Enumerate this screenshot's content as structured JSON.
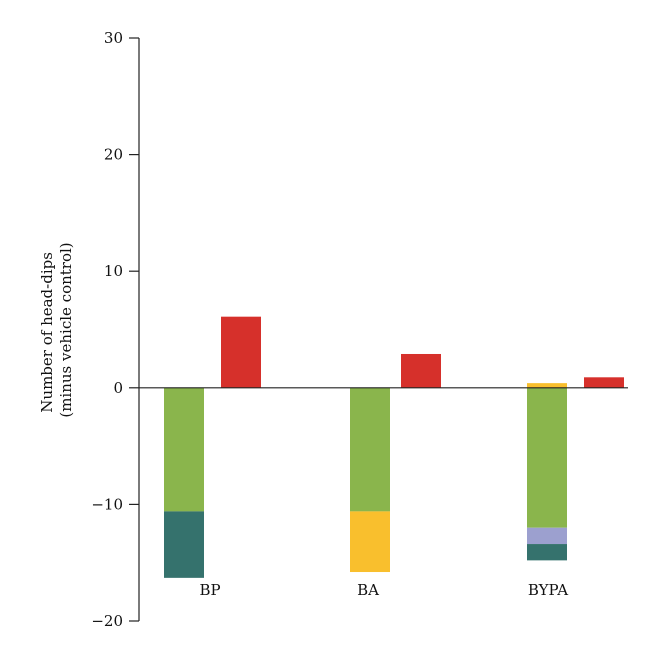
{
  "chart_data": {
    "type": "bar",
    "ylabel_lines": [
      "Number of head-dips",
      "(minus vehicle control)"
    ],
    "ylim": [
      -20,
      30
    ],
    "yticks": [
      30,
      20,
      10,
      0,
      -10,
      -20
    ],
    "categories": [
      "BP",
      "BA",
      "BYPA"
    ],
    "grid": false,
    "bars": [
      {
        "category": "BP",
        "position": "left",
        "segments": [
          {
            "from": 0,
            "to": -10.6,
            "color": "#8ab54c"
          },
          {
            "from": -10.6,
            "to": -16.3,
            "color": "#35726d"
          }
        ]
      },
      {
        "category": "BP",
        "position": "right",
        "segments": [
          {
            "from": 0,
            "to": 6.1,
            "color": "#d6302b"
          }
        ]
      },
      {
        "category": "BA",
        "position": "left",
        "segments": [
          {
            "from": 0,
            "to": -10.6,
            "color": "#8ab54c"
          },
          {
            "from": -10.6,
            "to": -15.8,
            "color": "#f9bf2d"
          }
        ]
      },
      {
        "category": "BA",
        "position": "right",
        "segments": [
          {
            "from": 0,
            "to": 2.9,
            "color": "#d6302b"
          }
        ]
      },
      {
        "category": "BYPA",
        "position": "left",
        "segments": [
          {
            "from": 0,
            "to": 0.4,
            "color": "#f9bf2d"
          },
          {
            "from": 0,
            "to": -12.0,
            "color": "#8ab54c"
          },
          {
            "from": -12.0,
            "to": -13.4,
            "color": "#9ca0cf"
          },
          {
            "from": -13.4,
            "to": -14.8,
            "color": "#35726d"
          }
        ]
      },
      {
        "category": "BYPA",
        "position": "right",
        "segments": [
          {
            "from": 0,
            "to": 0.9,
            "color": "#d6302b"
          }
        ]
      }
    ]
  }
}
